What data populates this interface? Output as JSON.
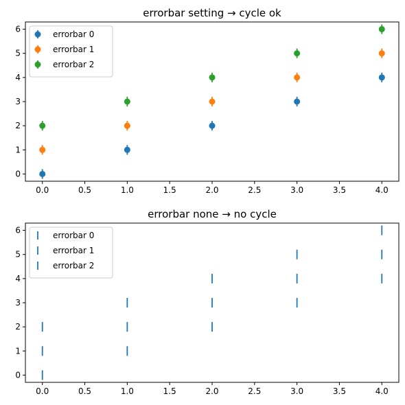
{
  "chart_data": [
    {
      "type": "scatter",
      "title": "errorbar setting → cycle ok",
      "xlabel": "",
      "ylabel": "",
      "x": [
        0,
        1,
        2,
        3,
        4
      ],
      "xlim": [
        -0.2,
        4.2
      ],
      "ylim": [
        -0.3,
        6.3
      ],
      "xticks": [
        "0.0",
        "0.5",
        "1.0",
        "1.5",
        "2.0",
        "2.5",
        "3.0",
        "3.5",
        "4.0"
      ],
      "yticks": [
        "0",
        "1",
        "2",
        "3",
        "4",
        "5",
        "6"
      ],
      "legend_placement": "upper-left",
      "marker": "circle",
      "series": [
        {
          "name": "errorbar 0",
          "values": [
            0,
            1,
            2,
            3,
            4
          ],
          "yerr": 0.2,
          "color": "#1f77b4"
        },
        {
          "name": "errorbar 1",
          "values": [
            1,
            2,
            3,
            4,
            5
          ],
          "yerr": 0.2,
          "color": "#ff7f0e"
        },
        {
          "name": "errorbar 2",
          "values": [
            2,
            3,
            4,
            5,
            6
          ],
          "yerr": 0.2,
          "color": "#2ca02c"
        }
      ]
    },
    {
      "type": "scatter",
      "title": "errorbar none → no cycle",
      "xlabel": "",
      "ylabel": "",
      "x": [
        0,
        1,
        2,
        3,
        4
      ],
      "xlim": [
        -0.2,
        4.2
      ],
      "ylim": [
        -0.3,
        6.3
      ],
      "xticks": [
        "0.0",
        "0.5",
        "1.0",
        "1.5",
        "2.0",
        "2.5",
        "3.0",
        "3.5",
        "4.0"
      ],
      "yticks": [
        "0",
        "1",
        "2",
        "3",
        "4",
        "5",
        "6"
      ],
      "legend_placement": "upper-left",
      "marker": "none",
      "series": [
        {
          "name": "errorbar 0",
          "values": [
            0,
            1,
            2,
            3,
            4
          ],
          "yerr": 0.2,
          "color": "#1f77b4"
        },
        {
          "name": "errorbar 1",
          "values": [
            1,
            2,
            3,
            4,
            5
          ],
          "yerr": 0.2,
          "color": "#1f77b4"
        },
        {
          "name": "errorbar 2",
          "values": [
            2,
            3,
            4,
            5,
            6
          ],
          "yerr": 0.2,
          "color": "#1f77b4"
        }
      ]
    }
  ]
}
